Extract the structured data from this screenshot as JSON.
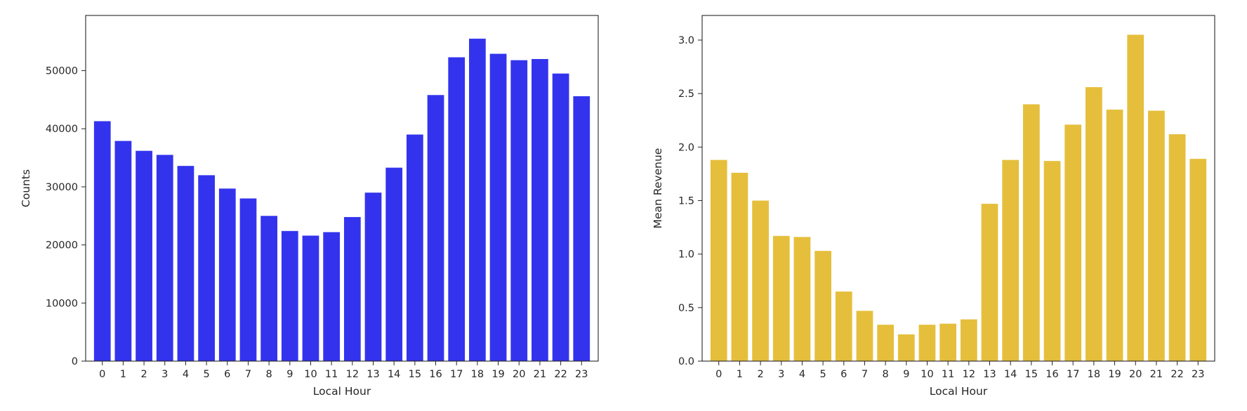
{
  "chart_data": [
    {
      "type": "bar",
      "title": "",
      "xlabel": "Local Hour",
      "ylabel": "Counts",
      "categories": [
        "0",
        "1",
        "2",
        "3",
        "4",
        "5",
        "6",
        "7",
        "8",
        "9",
        "10",
        "11",
        "12",
        "13",
        "14",
        "15",
        "16",
        "17",
        "18",
        "19",
        "20",
        "21",
        "22",
        "23"
      ],
      "values": [
        41300,
        37900,
        36200,
        35500,
        33600,
        32000,
        29700,
        28000,
        25000,
        22400,
        21600,
        22200,
        24800,
        29000,
        33300,
        39000,
        45800,
        52300,
        55500,
        52900,
        51800,
        52000,
        49500,
        45600
      ],
      "ylim": [
        0,
        59500
      ],
      "yticks": [
        0,
        10000,
        20000,
        30000,
        40000,
        50000
      ],
      "ytick_labels": [
        "0",
        "10000",
        "20000",
        "30000",
        "40000",
        "50000"
      ],
      "color": "#3333ee",
      "grid": false
    },
    {
      "type": "bar",
      "title": "",
      "xlabel": "Local Hour",
      "ylabel": "Mean Revenue",
      "categories": [
        "0",
        "1",
        "2",
        "3",
        "4",
        "5",
        "6",
        "7",
        "8",
        "9",
        "10",
        "11",
        "12",
        "13",
        "14",
        "15",
        "16",
        "17",
        "18",
        "19",
        "20",
        "21",
        "22",
        "23"
      ],
      "values": [
        1.88,
        1.76,
        1.5,
        1.17,
        1.16,
        1.03,
        0.65,
        0.47,
        0.34,
        0.25,
        0.34,
        0.35,
        0.39,
        1.47,
        1.88,
        2.4,
        1.87,
        2.21,
        2.56,
        2.35,
        3.05,
        2.34,
        2.12,
        1.89
      ],
      "ylim": [
        0,
        3.23
      ],
      "yticks": [
        0,
        0.5,
        1.0,
        1.5,
        2.0,
        2.5,
        3.0
      ],
      "ytick_labels": [
        "0.0",
        "0.5",
        "1.0",
        "1.5",
        "2.0",
        "2.5",
        "3.0"
      ],
      "color": "#e5bf3c",
      "grid": false
    }
  ]
}
